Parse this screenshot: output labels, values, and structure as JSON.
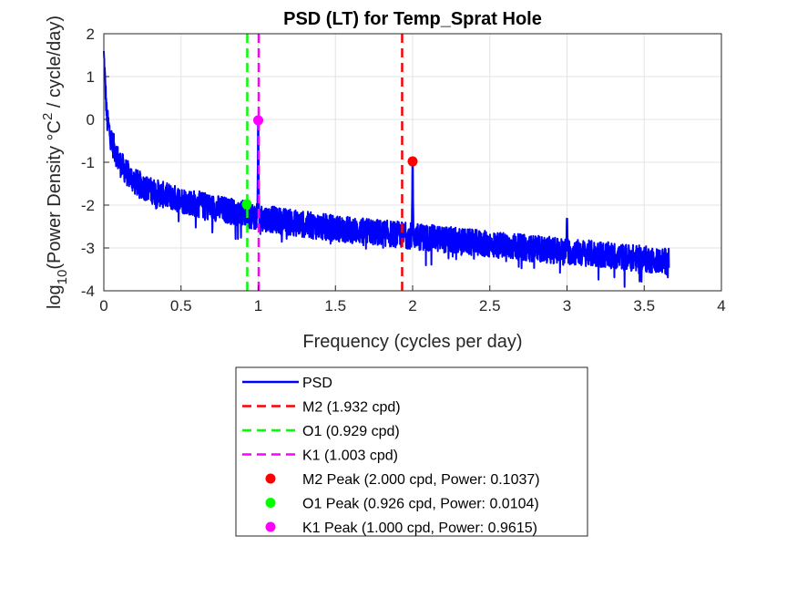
{
  "chart_data": {
    "type": "line",
    "title": "PSD (LT) for Temp_Sprat Hole",
    "xlabel": "Frequency (cycles per day)",
    "ylabel": {
      "prefix": "log",
      "sub": "10",
      "mid": "(Power Density °C",
      "sup": "2",
      "suffix": " / cycle/day)"
    },
    "xlim": [
      0,
      4
    ],
    "ylim": [
      -4,
      2
    ],
    "xticks": [
      "0",
      "0.5",
      "1",
      "1.5",
      "2",
      "2.5",
      "3",
      "3.5",
      "4"
    ],
    "yticks": [
      "-4",
      "-3",
      "-2",
      "-1",
      "0",
      "1",
      "2"
    ],
    "grid": true,
    "legend_position": "below",
    "series": [
      {
        "name": "PSD",
        "kind": "line",
        "color": "#0000ff",
        "x_range": [
          0.0,
          3.66
        ],
        "envelope": {
          "x": [
            0.0,
            0.02,
            0.05,
            0.1,
            0.15,
            0.2,
            0.3,
            0.4,
            0.5,
            0.6,
            0.7,
            0.8,
            0.9,
            1.0,
            1.2,
            1.4,
            1.6,
            1.8,
            2.0,
            2.2,
            2.4,
            2.6,
            2.8,
            3.0,
            3.2,
            3.4,
            3.66
          ],
          "y": [
            1.5,
            0.0,
            -0.5,
            -1.0,
            -1.25,
            -1.45,
            -1.65,
            -1.78,
            -1.88,
            -1.97,
            -2.05,
            -2.12,
            -2.2,
            -2.28,
            -2.4,
            -2.5,
            -2.58,
            -2.65,
            -2.72,
            -2.8,
            -2.88,
            -2.95,
            -3.02,
            -3.08,
            -3.15,
            -3.22,
            -3.32
          ]
        },
        "spikes": [
          {
            "x": 1.0,
            "y": -0.02
          },
          {
            "x": 2.0,
            "y": -0.98
          },
          {
            "x": 3.0,
            "y": -2.3
          }
        ]
      },
      {
        "name": "M2 (1.932 cpd)",
        "kind": "vline",
        "x": 1.932,
        "color": "#ff0000"
      },
      {
        "name": "O1 (0.929 cpd)",
        "kind": "vline",
        "x": 0.929,
        "color": "#00ff00"
      },
      {
        "name": "K1 (1.003 cpd)",
        "kind": "vline",
        "x": 1.003,
        "color": "#ff00ff"
      },
      {
        "name": "M2 Peak (2.000 cpd, Power: 0.1037)",
        "kind": "point",
        "x": 2.0,
        "y": -0.98,
        "color": "#ff0000"
      },
      {
        "name": "O1 Peak (0.926 cpd, Power: 0.0104)",
        "kind": "point",
        "x": 0.926,
        "y": -1.98,
        "color": "#00ff00"
      },
      {
        "name": "K1 Peak (1.000 cpd, Power: 0.9615)",
        "kind": "point",
        "x": 1.0,
        "y": -0.02,
        "color": "#ff00ff"
      }
    ]
  }
}
